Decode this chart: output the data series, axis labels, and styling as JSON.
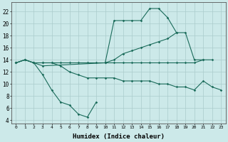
{
  "xlabel": "Humidex (Indice chaleur)",
  "background_color": "#cce9e9",
  "grid_color": "#aacccc",
  "line_color": "#1a6b5a",
  "xlim": [
    -0.5,
    23.5
  ],
  "ylim": [
    3.5,
    23.5
  ],
  "xticks": [
    0,
    1,
    2,
    3,
    4,
    5,
    6,
    7,
    8,
    9,
    10,
    11,
    12,
    13,
    14,
    15,
    16,
    17,
    18,
    19,
    20,
    21,
    22,
    23
  ],
  "yticks": [
    4,
    6,
    8,
    10,
    12,
    14,
    16,
    18,
    20,
    22
  ],
  "line_flat_x": [
    0,
    1,
    2,
    3,
    4,
    5,
    6,
    7,
    8,
    9,
    10,
    11,
    12,
    13,
    14,
    15,
    16,
    17,
    18,
    19,
    20,
    21,
    22
  ],
  "line_flat_y": [
    13.5,
    14.0,
    13.5,
    13.5,
    13.5,
    13.5,
    13.5,
    13.5,
    13.5,
    13.5,
    13.5,
    13.5,
    13.5,
    13.5,
    13.5,
    13.5,
    13.5,
    13.5,
    13.5,
    13.5,
    13.5,
    14.0,
    14.0
  ],
  "line_rise_x": [
    0,
    1,
    2,
    3,
    10,
    11,
    12,
    13,
    14,
    15,
    16,
    17,
    18,
    19,
    20,
    21
  ],
  "line_rise_y": [
    13.5,
    14.0,
    13.5,
    13.0,
    13.5,
    14.0,
    15.0,
    15.5,
    16.0,
    16.5,
    17.0,
    17.5,
    18.5,
    18.5,
    14.0,
    14.0
  ],
  "line_dip_x": [
    0,
    1,
    2,
    3,
    4,
    5,
    6,
    7,
    8,
    9
  ],
  "line_dip_y": [
    13.5,
    14.0,
    13.5,
    11.5,
    9.0,
    7.0,
    6.5,
    5.0,
    4.5,
    7.0
  ],
  "line_lower_x": [
    3,
    4,
    5,
    6,
    7,
    8,
    9,
    10,
    11,
    12,
    13,
    14,
    15,
    16,
    17,
    18,
    19,
    20,
    21,
    22,
    23
  ],
  "line_lower_y": [
    13.5,
    13.5,
    13.0,
    12.0,
    11.5,
    11.0,
    11.0,
    11.0,
    11.0,
    10.5,
    10.5,
    10.5,
    10.5,
    10.0,
    10.0,
    9.5,
    9.5,
    9.0,
    10.5,
    9.5,
    9.0
  ],
  "line_upper_x": [
    10,
    11,
    12,
    13,
    14,
    15,
    16,
    17,
    18
  ],
  "line_upper_y": [
    13.5,
    20.5,
    20.5,
    20.5,
    20.5,
    22.5,
    22.5,
    21.0,
    18.5
  ]
}
